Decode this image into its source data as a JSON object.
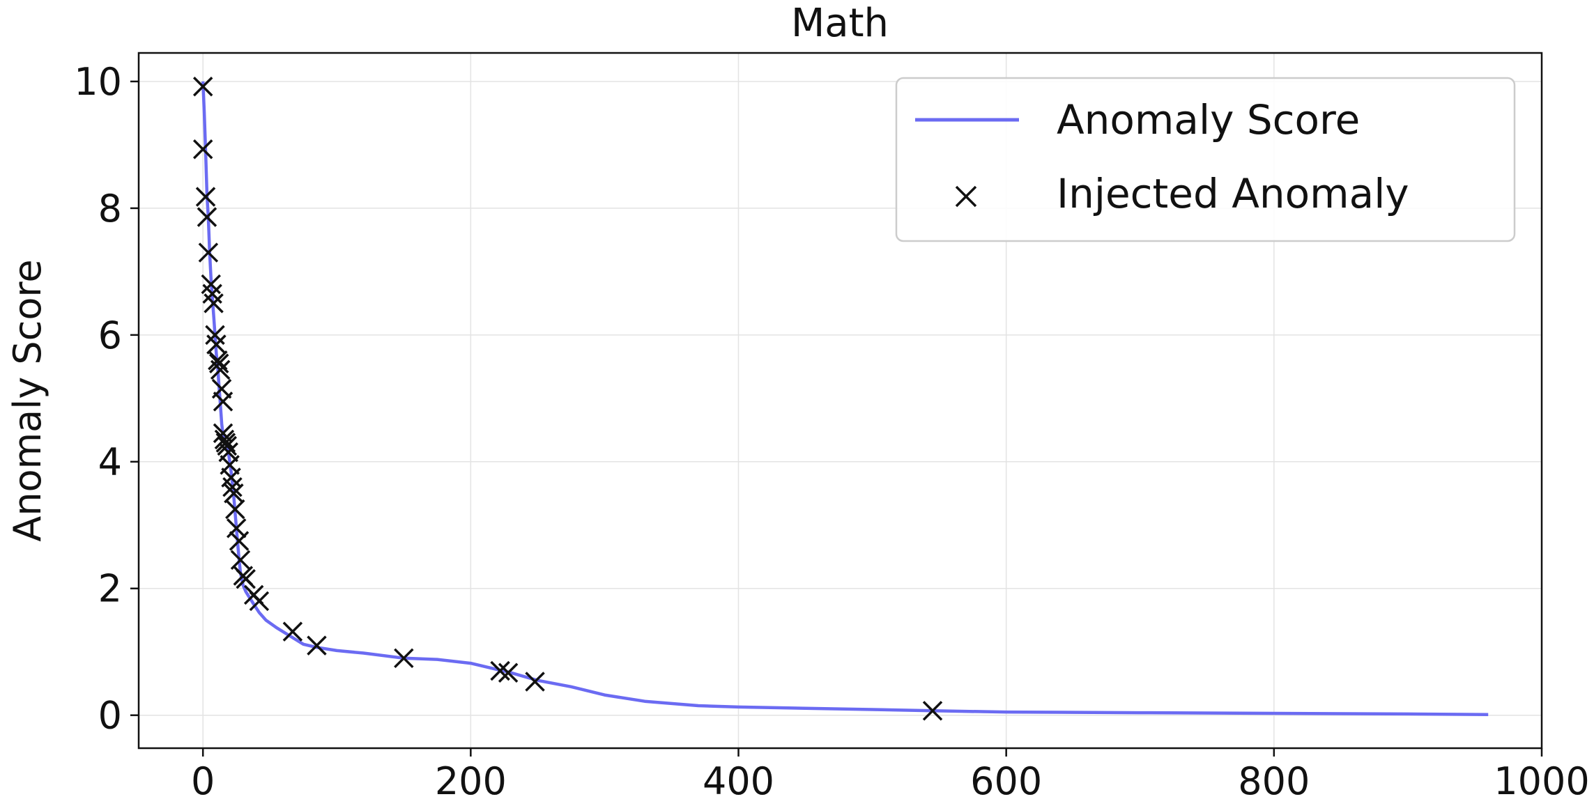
{
  "chart_data": {
    "type": "line",
    "title": "Math",
    "xlabel": "",
    "ylabel": "Anomaly Score",
    "xlim": [
      -48,
      1000
    ],
    "ylim": [
      -0.52,
      10.45
    ],
    "xticks": [
      0,
      200,
      400,
      600,
      800,
      1000
    ],
    "yticks": [
      0,
      2,
      4,
      6,
      8,
      10
    ],
    "grid": true,
    "legend_position": "top-right",
    "colors": {
      "line": "#6b6bf2",
      "marker": "#111111"
    },
    "series": [
      {
        "name": "Anomaly Score",
        "kind": "line",
        "x": [
          0,
          1,
          2,
          3,
          4,
          5,
          6,
          7,
          8,
          9,
          10,
          11,
          12,
          13,
          14,
          15,
          16,
          17,
          18,
          19,
          20,
          21,
          22,
          23,
          24,
          25,
          26,
          27,
          28,
          29,
          30,
          32,
          35,
          38,
          42,
          47,
          55,
          65,
          75,
          85,
          100,
          120,
          150,
          175,
          200,
          220,
          230,
          250,
          275,
          300,
          330,
          370,
          400,
          450,
          500,
          545,
          600,
          700,
          800,
          900,
          960
        ],
        "y": [
          10.0,
          9.5,
          8.9,
          8.2,
          7.85,
          7.3,
          6.9,
          6.6,
          6.3,
          6.0,
          5.7,
          5.5,
          5.2,
          4.9,
          4.6,
          4.42,
          4.35,
          4.3,
          4.22,
          4.15,
          4.0,
          3.85,
          3.65,
          3.45,
          3.2,
          2.95,
          2.7,
          2.45,
          2.25,
          2.15,
          2.05,
          1.95,
          1.85,
          1.75,
          1.62,
          1.5,
          1.38,
          1.25,
          1.12,
          1.07,
          1.02,
          0.98,
          0.9,
          0.88,
          0.82,
          0.72,
          0.67,
          0.55,
          0.45,
          0.32,
          0.22,
          0.15,
          0.13,
          0.11,
          0.09,
          0.07,
          0.05,
          0.04,
          0.03,
          0.02,
          0.01
        ]
      },
      {
        "name": "Injected Anomaly",
        "kind": "scatter",
        "marker": "x",
        "x": [
          0,
          0,
          2,
          3,
          4,
          6,
          7,
          8,
          9,
          10,
          11,
          12,
          13,
          14,
          15,
          15,
          16,
          17,
          18,
          19,
          20,
          21,
          22,
          23,
          24,
          25,
          27,
          28,
          30,
          32,
          38,
          42,
          67,
          85,
          150,
          222,
          228,
          248,
          545
        ],
        "y": [
          9.92,
          8.93,
          8.18,
          7.86,
          7.3,
          6.8,
          6.65,
          6.5,
          6.0,
          5.85,
          5.6,
          5.55,
          5.45,
          5.15,
          4.95,
          4.45,
          4.35,
          4.3,
          4.25,
          4.15,
          3.95,
          3.75,
          3.6,
          3.5,
          3.25,
          2.95,
          2.75,
          2.45,
          2.2,
          2.15,
          1.9,
          1.8,
          1.32,
          1.1,
          0.9,
          0.7,
          0.67,
          0.53,
          0.07
        ]
      }
    ]
  }
}
